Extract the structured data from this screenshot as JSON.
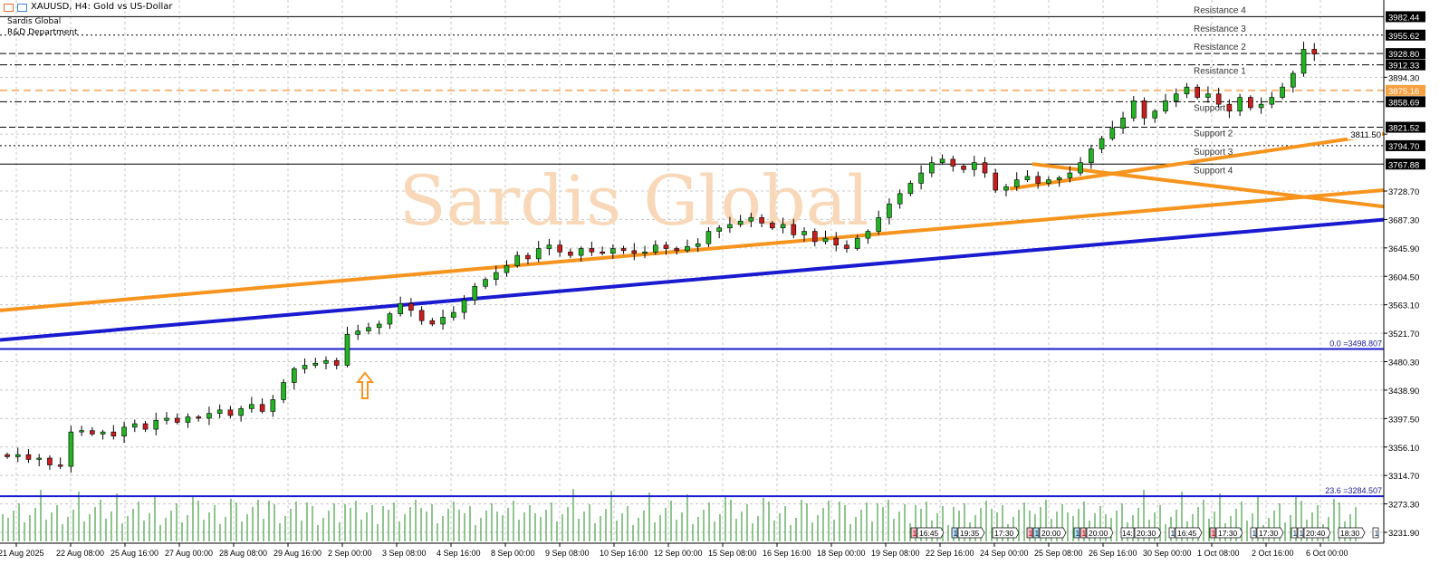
{
  "header": {
    "symbol_title": "XAUUSD, H4:  Gold vs US-Dollar",
    "brand_line1": "Sardis Global",
    "brand_line2": "R&D Department",
    "watermark": "Sardis Global"
  },
  "chart_data": {
    "type": "candlestick",
    "symbol": "XAUUSD",
    "timeframe": "H4",
    "ylim": [
      3210,
      3995
    ],
    "grid": true,
    "colors": {
      "bull": "#22b422",
      "bear": "#c81e1e",
      "support_resistance": "#000000",
      "trendline_orange": "#f7941d",
      "trendline_blue": "#1a1ad0",
      "pivot": "#f7b77a",
      "volume": "#1e8c1e",
      "watermark": "#f8d8b8"
    },
    "closes": [
      3342,
      3345,
      3338,
      3340,
      3330,
      3328,
      3378,
      3380,
      3375,
      3378,
      3372,
      3385,
      3390,
      3382,
      3395,
      3398,
      3392,
      3400,
      3398,
      3405,
      3410,
      3402,
      3412,
      3418,
      3408,
      3425,
      3450,
      3470,
      3475,
      3478,
      3482,
      3475,
      3520,
      3525,
      3530,
      3535,
      3550,
      3565,
      3555,
      3540,
      3535,
      3545,
      3552,
      3570,
      3590,
      3600,
      3610,
      3620,
      3635,
      3630,
      3645,
      3650,
      3640,
      3635,
      3645,
      3640,
      3638,
      3645,
      3642,
      3638,
      3640,
      3650,
      3645,
      3642,
      3648,
      3652,
      3670,
      3675,
      3680,
      3685,
      3690,
      3682,
      3675,
      3680,
      3665,
      3670,
      3655,
      3660,
      3650,
      3645,
      3660,
      3670,
      3690,
      3710,
      3725,
      3740,
      3755,
      3770,
      3775,
      3765,
      3760,
      3770,
      3755,
      3730,
      3735,
      3745,
      3750,
      3740,
      3745,
      3748,
      3755,
      3770,
      3790,
      3805,
      3820,
      3835,
      3860,
      3835,
      3845,
      3860,
      3870,
      3880,
      3865,
      3870,
      3855,
      3845,
      3865,
      3850,
      3855,
      3865,
      3880,
      3900,
      3935,
      3928
    ],
    "first_open": 3345,
    "levels": [
      {
        "name": "Resistance 4",
        "price": 3982.44,
        "style": "solid"
      },
      {
        "name": "Resistance 3",
        "price": 3955.62,
        "style": "dotted"
      },
      {
        "name": "Resistance 2",
        "price": 3928.8,
        "style": "dashed"
      },
      {
        "name": "Resistance 1",
        "price": 3912.33,
        "style": "dashdot"
      },
      {
        "name": "",
        "price": 3875.16,
        "style": "pivot"
      },
      {
        "name": "Support 1",
        "price": 3858.69,
        "style": "dashdot"
      },
      {
        "name": "Support 2",
        "price": 3821.52,
        "style": "dashed"
      },
      {
        "name": "Support 3",
        "price": 3794.7,
        "style": "dotted"
      },
      {
        "name": "Support 4",
        "price": 3767.88,
        "style": "solid"
      }
    ],
    "fibonacci": [
      {
        "label": "0.0 =3498.807",
        "price": 3498.807
      },
      {
        "label": "23.6 =3284.507",
        "price": 3284.507
      }
    ],
    "trendlines": [
      {
        "color": "orange",
        "from": [
          "21 Aug 2025",
          3555
        ],
        "to": [
          "6 Oct",
          3730
        ]
      },
      {
        "color": "blue",
        "from": [
          "21 Aug 2025",
          3512
        ],
        "to": [
          "6 Oct",
          3687
        ]
      },
      {
        "color": "orange",
        "from": [
          "24 Sep",
          3732
        ],
        "to": [
          "6 Oct",
          3812
        ]
      },
      {
        "color": "orange",
        "from": [
          "25 Sep",
          3768
        ],
        "to": [
          "6 Oct",
          3706
        ]
      }
    ],
    "y_ticks": [
      "3894.30",
      "3811.50",
      "3728.70",
      "3687.30",
      "3645.90",
      "3604.50",
      "3563.10",
      "3521.70",
      "3480.30",
      "3438.90",
      "3397.50",
      "3356.10",
      "3314.70",
      "3273.30",
      "3231.90"
    ],
    "price_boxes": [
      {
        "label": "3982.44",
        "color": "#000000"
      },
      {
        "label": "3955.62",
        "color": "#000000"
      },
      {
        "label": "3928.80",
        "color": "#000000"
      },
      {
        "label": "3912.33",
        "color": "#000000"
      },
      {
        "label": "3875.16",
        "color": "#f7a040"
      },
      {
        "label": "3858.69",
        "color": "#000000"
      },
      {
        "label": "3821.52",
        "color": "#000000"
      },
      {
        "label": "3794.70",
        "color": "#000000"
      },
      {
        "label": "3767.88",
        "color": "#000000"
      }
    ],
    "x_ticks": [
      "21 Aug 2025",
      "22 Aug 08:00",
      "25 Aug 16:00",
      "27 Aug 00:00",
      "28 Aug 08:00",
      "29 Aug 16:00",
      "2 Sep 00:00",
      "3 Sep 08:00",
      "4 Sep 16:00",
      "8 Sep 00:00",
      "9 Sep 08:00",
      "10 Sep 16:00",
      "12 Sep 00:00",
      "15 Sep 08:00",
      "16 Sep 16:00",
      "18 Sep 00:00",
      "19 Sep 08:00",
      "22 Sep 16:00",
      "24 Sep 00:00",
      "25 Sep 08:00",
      "26 Sep 16:00",
      "30 Sep 00:00",
      "1 Oct 08:00",
      "2 Oct 16:00",
      "6 Oct 00:00"
    ],
    "events": [
      {
        "flags": [
          "pink"
        ],
        "time": "16:45"
      },
      {
        "flags": [
          "blue"
        ],
        "time": "19:35"
      },
      {
        "flags": [],
        "time": "17:30"
      },
      {
        "flags": [
          "pink",
          "blue"
        ],
        "time": "20:00"
      },
      {
        "flags": [
          "blue",
          "pink"
        ],
        "time": "20:00"
      },
      {
        "flags": [
          "14:"
        ],
        "time": "20:30"
      },
      {
        "flags": [
          "white"
        ],
        "time": "16:45"
      },
      {
        "flags": [
          "pink"
        ],
        "time": "17:30"
      },
      {
        "flags": [
          "white"
        ],
        "time": "17:30"
      },
      {
        "flags": [
          "white",
          "white"
        ],
        "time": "20:40"
      },
      {
        "flags": [],
        "time": "18:30"
      },
      {
        "flags": [
          "white"
        ],
        "time": ""
      }
    ],
    "annotation_arrow": "up-arrow"
  }
}
